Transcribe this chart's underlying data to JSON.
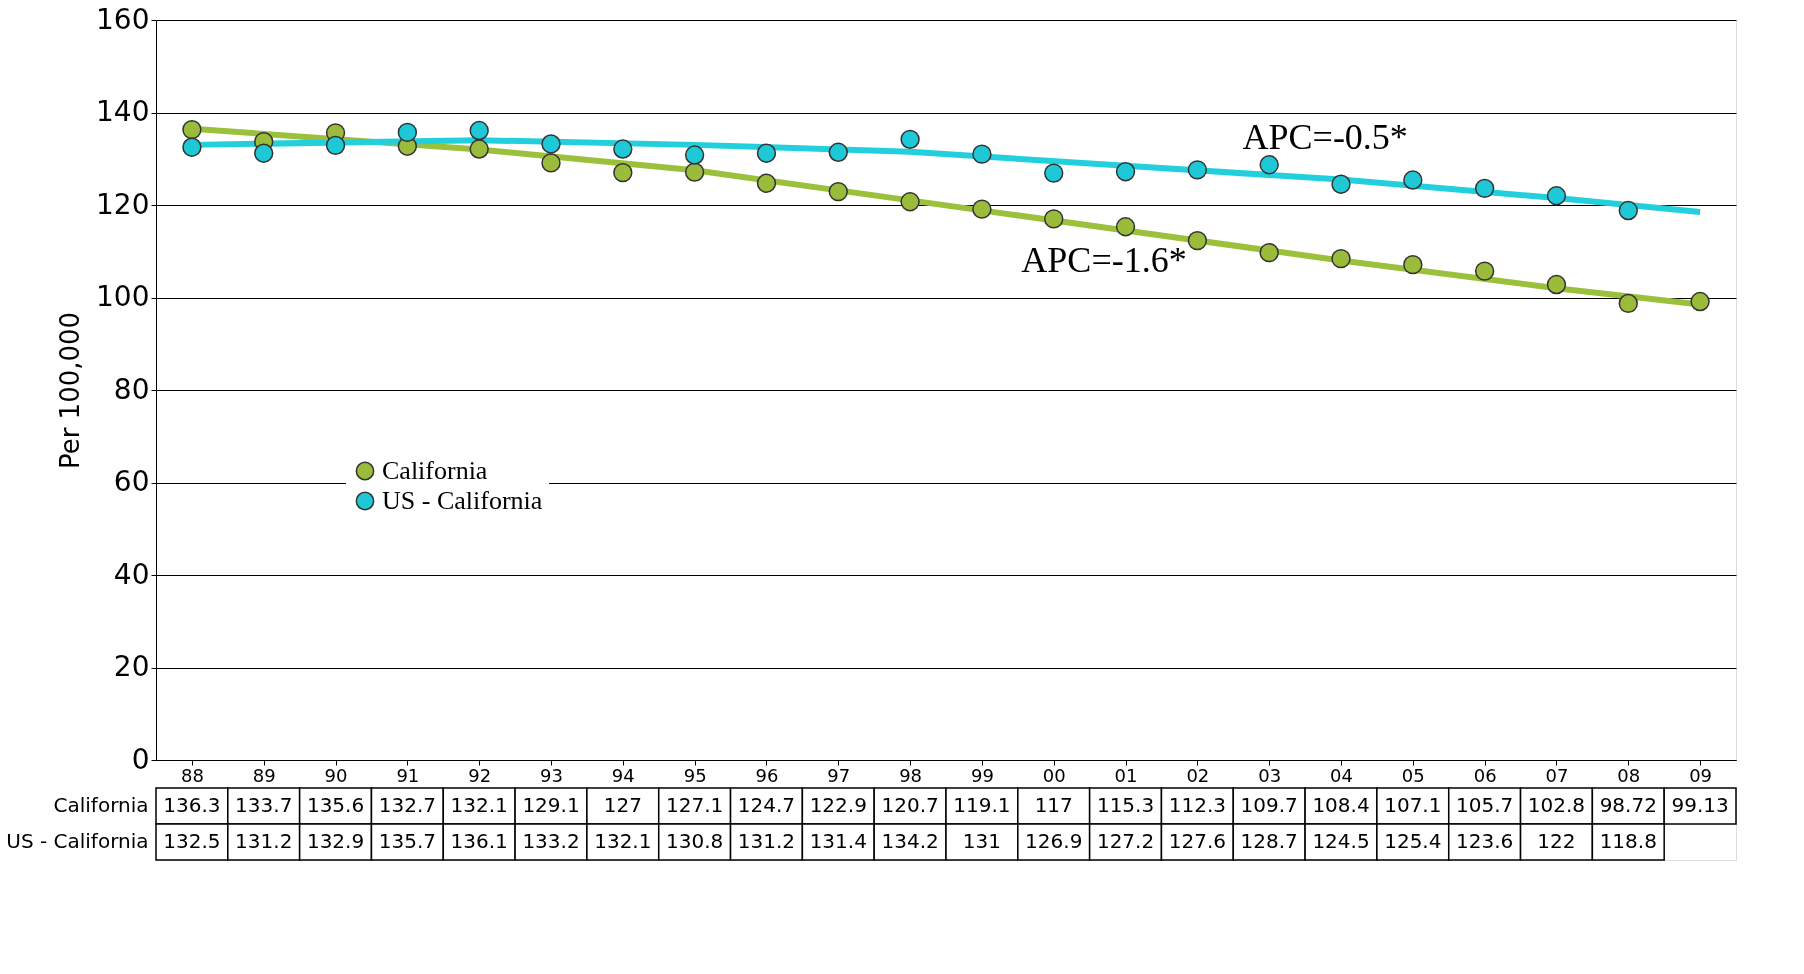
{
  "chart_data": {
    "type": "scatter",
    "categories": [
      "88",
      "89",
      "90",
      "91",
      "92",
      "93",
      "94",
      "95",
      "96",
      "97",
      "98",
      "99",
      "00",
      "01",
      "02",
      "03",
      "04",
      "05",
      "06",
      "07",
      "08",
      "09"
    ],
    "ylabel": "Per 100,000",
    "ylim": [
      0,
      160
    ],
    "yticks": [
      0,
      20,
      40,
      60,
      80,
      100,
      120,
      140,
      160
    ],
    "grid": "y",
    "legend": "left",
    "marker": "circle",
    "series": [
      {
        "name": "California",
        "color": "#9bbb3b",
        "values": [
          136.3,
          133.7,
          135.6,
          132.7,
          132.1,
          129.1,
          127,
          127.1,
          124.7,
          122.9,
          120.7,
          119.1,
          117,
          115.3,
          112.3,
          109.7,
          108.4,
          107.1,
          105.7,
          102.8,
          98.72,
          99.13
        ],
        "value_labels": [
          "136.3",
          "133.7",
          "135.6",
          "132.7",
          "132.1",
          "129.1",
          "127",
          "127.1",
          "124.7",
          "122.9",
          "120.7",
          "119.1",
          "117",
          "115.3",
          "112.3",
          "109.7",
          "108.4",
          "107.1",
          "105.7",
          "102.8",
          "98.72",
          "99.13"
        ]
      },
      {
        "name": "US - California",
        "color": "#1fc8d6",
        "values": [
          132.5,
          131.2,
          132.9,
          135.7,
          136.1,
          133.2,
          132.1,
          130.8,
          131.2,
          131.4,
          134.2,
          131,
          126.9,
          127.2,
          127.6,
          128.7,
          124.5,
          125.4,
          123.6,
          122,
          118.8,
          null
        ],
        "value_labels": [
          "132.5",
          "131.2",
          "132.9",
          "135.7",
          "136.1",
          "133.2",
          "132.1",
          "130.8",
          "131.2",
          "131.4",
          "134.2",
          "131",
          "126.9",
          "127.2",
          "127.6",
          "128.7",
          "124.5",
          "125.4",
          "123.6",
          "122",
          "118.8",
          null
        ]
      },
      {
        "type": "line",
        "color": "#9bc13c",
        "marker": "none",
        "line_style": "solid",
        "x": [
          "88",
          "92",
          "95",
          "98",
          "01",
          "04",
          "07",
          "09"
        ],
        "values": [
          136.5,
          132,
          127.5,
          121,
          114.5,
          108,
          102,
          98.5
        ]
      },
      {
        "type": "line",
        "color": "#22cfdc",
        "marker": "none",
        "line_style": "solid",
        "x": [
          "88",
          "92",
          "95",
          "98",
          "01",
          "04",
          "07",
          "09"
        ],
        "values": [
          133,
          134,
          133,
          131.5,
          128.5,
          125.5,
          121.5,
          118.5
        ]
      }
    ],
    "annotations": [
      "APC=-1.6*",
      "APC=-0.5*"
    ]
  }
}
